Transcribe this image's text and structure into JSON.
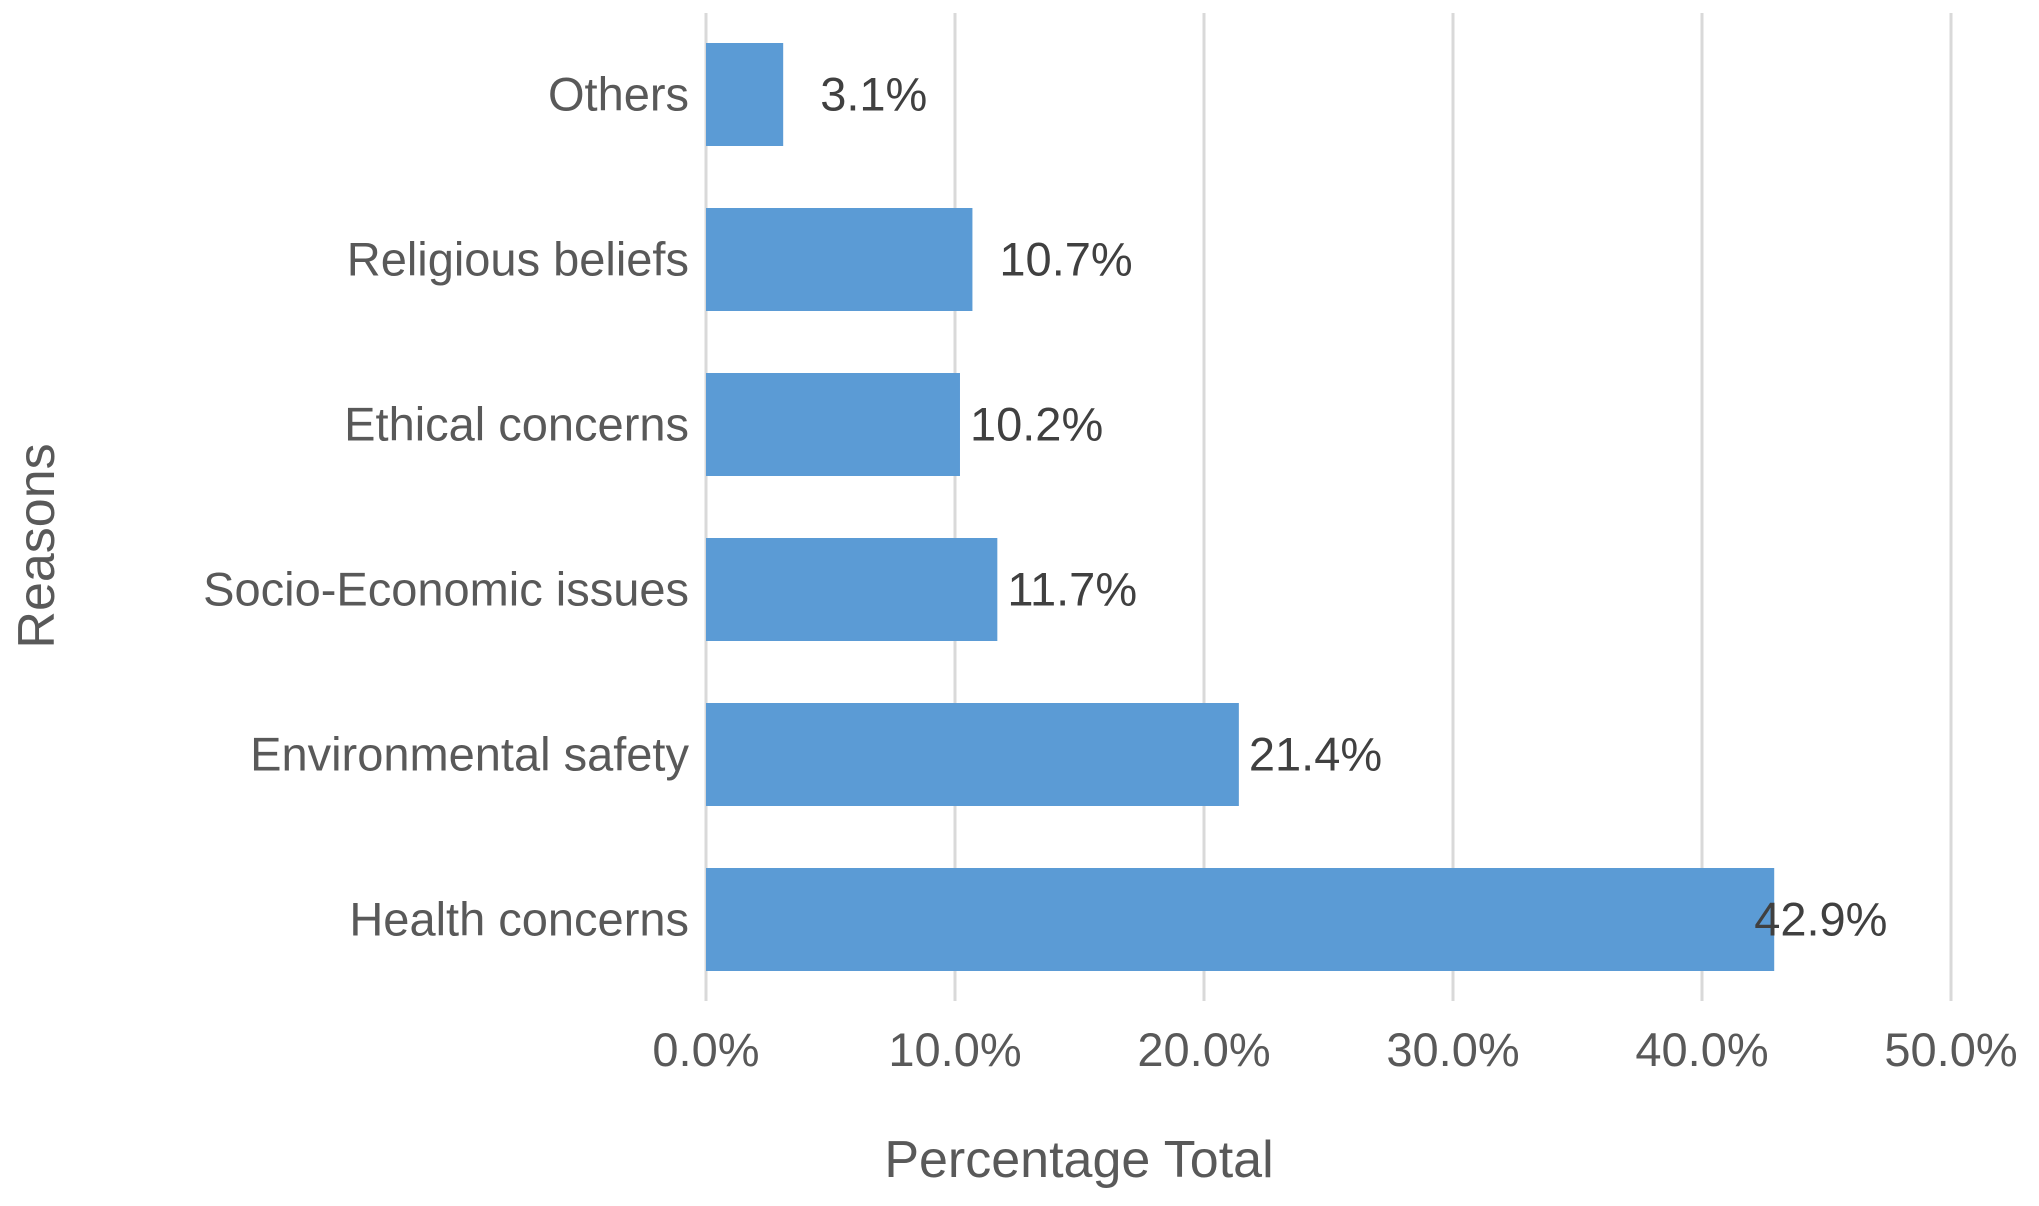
{
  "chart_data": {
    "type": "bar",
    "orientation": "horizontal",
    "categories": [
      "Others",
      "Religious beliefs",
      "Ethical concerns",
      "Socio-Economic issues",
      "Environmental safety",
      "Health concerns"
    ],
    "values": [
      3.1,
      10.7,
      10.2,
      11.7,
      21.4,
      42.9
    ],
    "data_labels": [
      "3.1%",
      "10.7%",
      "10.2%",
      "11.7%",
      "21.4%",
      "42.9%"
    ],
    "xlabel": "Percentage Total",
    "ylabel": "Reasons",
    "xlim": [
      0,
      50
    ],
    "xticks": [
      0,
      10,
      20,
      30,
      40,
      50
    ],
    "xtick_labels": [
      "0.0%",
      "10.0%",
      "20.0%",
      "30.0%",
      "40.0%",
      "50.0%"
    ],
    "grid": true,
    "bar_color": "#5b9bd5"
  }
}
